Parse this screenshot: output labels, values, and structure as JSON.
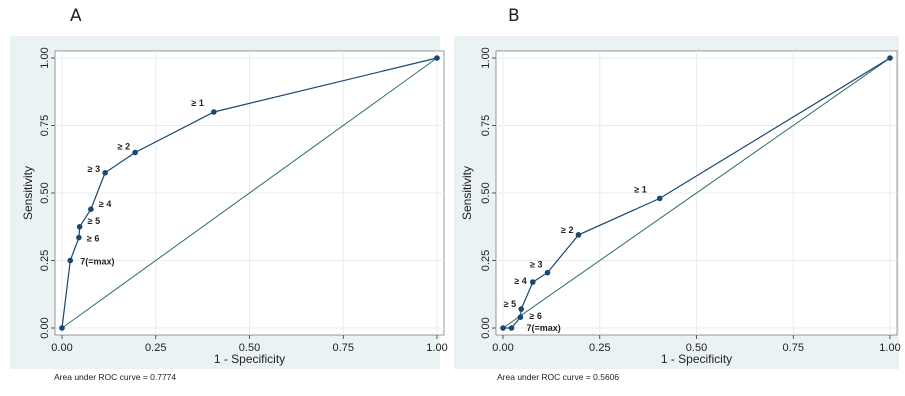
{
  "panels": [
    {
      "letter": "A",
      "xlabel": "1 - Specificity",
      "ylabel": "Sensitivity",
      "footnote": "Area under ROC curve = 0.7774"
    },
    {
      "letter": "B",
      "xlabel": "1 - Specificity",
      "ylabel": "Sensitivity",
      "footnote": "Area under ROC curve = 0.5606"
    }
  ],
  "colors": {
    "panel_bg": "#eaf2f3",
    "plot_bg": "#ffffff",
    "curve": "#1a476f",
    "point": "#1a476f",
    "reference": "#2d6d66",
    "grid": "#e7ecef"
  },
  "chart_data": [
    {
      "type": "line",
      "title": "",
      "xlabel": "1 - Specificity",
      "ylabel": "Sensitivity",
      "xlim": [
        0,
        1
      ],
      "ylim": [
        0,
        1
      ],
      "xticks": [
        "0.00",
        "0.25",
        "0.50",
        "0.75",
        "1.00"
      ],
      "yticks": [
        "0.00",
        "0.25",
        "0.50",
        "0.75",
        "1.00"
      ],
      "grid": true,
      "auc": 0.7774,
      "reference_line": [
        [
          0,
          0
        ],
        [
          1,
          1
        ]
      ],
      "points": [
        {
          "x": 0.0,
          "y": 0.0,
          "label": ""
        },
        {
          "x": 0.022,
          "y": 0.25,
          "label": "7(=max)"
        },
        {
          "x": 0.045,
          "y": 0.335,
          "label": "≥ 6"
        },
        {
          "x": 0.047,
          "y": 0.375,
          "label": "≥ 5"
        },
        {
          "x": 0.077,
          "y": 0.44,
          "label": "≥ 4"
        },
        {
          "x": 0.115,
          "y": 0.575,
          "label": "≥ 3"
        },
        {
          "x": 0.195,
          "y": 0.65,
          "label": "≥ 2"
        },
        {
          "x": 0.405,
          "y": 0.8,
          "label": "≥ 1"
        },
        {
          "x": 1.0,
          "y": 1.0,
          "label": ""
        }
      ]
    },
    {
      "type": "line",
      "title": "",
      "xlabel": "1 - Specificity",
      "ylabel": "Sensitivity",
      "xlim": [
        0,
        1
      ],
      "ylim": [
        0,
        1
      ],
      "xticks": [
        "0.00",
        "0.25",
        "0.50",
        "0.75",
        "1.00"
      ],
      "yticks": [
        "0.00",
        "0.25",
        "0.50",
        "0.75",
        "1.00"
      ],
      "grid": true,
      "auc": 0.5606,
      "reference_line": [
        [
          0,
          0
        ],
        [
          1,
          1
        ]
      ],
      "points": [
        {
          "x": 0.0,
          "y": 0.0,
          "label": ""
        },
        {
          "x": 0.022,
          "y": 0.0,
          "label": "7(=max)"
        },
        {
          "x": 0.045,
          "y": 0.04,
          "label": "≥ 6"
        },
        {
          "x": 0.047,
          "y": 0.07,
          "label": "≥ 5"
        },
        {
          "x": 0.077,
          "y": 0.17,
          "label": "≥ 4"
        },
        {
          "x": 0.115,
          "y": 0.205,
          "label": "≥ 3"
        },
        {
          "x": 0.195,
          "y": 0.345,
          "label": "≥ 2"
        },
        {
          "x": 0.405,
          "y": 0.48,
          "label": "≥ 1"
        },
        {
          "x": 1.0,
          "y": 1.0,
          "label": ""
        }
      ]
    }
  ]
}
